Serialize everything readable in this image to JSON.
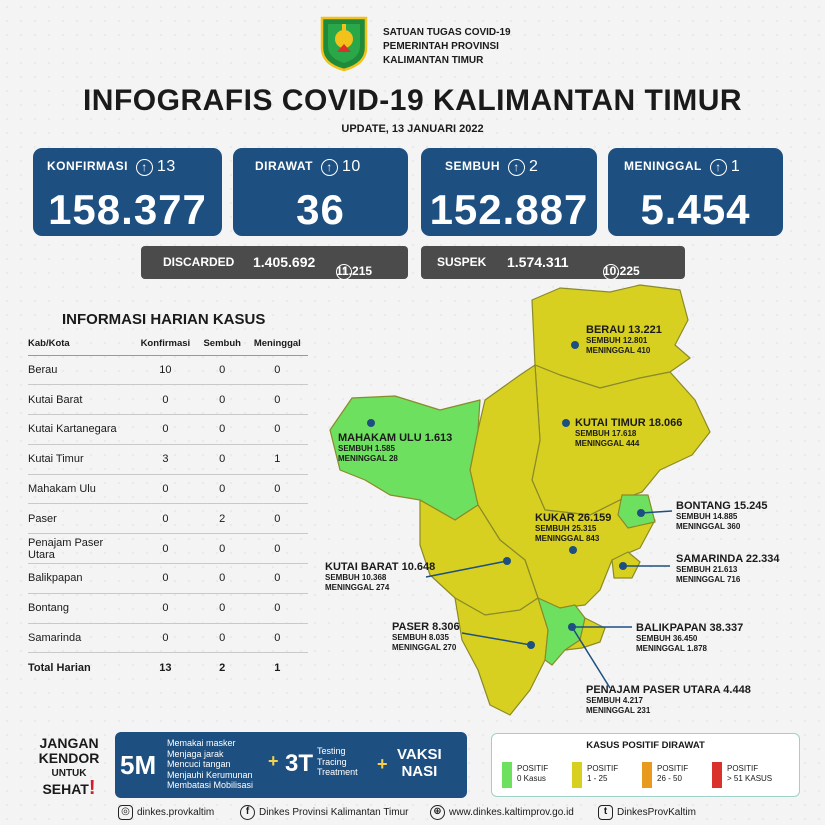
{
  "header": {
    "org_line1": "SATUAN TUGAS COVID-19",
    "org_line2": "PEMERINTAH PROVINSI",
    "org_line3": "KALIMANTAN TIMUR",
    "title": "INFOGRAFIS COVID-19 KALIMANTAN TIMUR",
    "update": "UPDATE, 13 JANUARI 2022"
  },
  "stats": {
    "konfirmasi": {
      "label": "KONFIRMASI",
      "delta": "13",
      "value": "158.377"
    },
    "dirawat": {
      "label": "DIRAWAT",
      "delta": "10",
      "value": "36"
    },
    "sembuh": {
      "label": "SEMBUH",
      "delta": "2",
      "value": "152.887"
    },
    "meninggal": {
      "label": "MENINGGAL",
      "delta": "1",
      "value": "5.454"
    }
  },
  "discarded": {
    "label": "DISCARDED",
    "value": "1.405.692",
    "delta": "11.215"
  },
  "suspek": {
    "label": "SUSPEK",
    "value": "1.574.311",
    "delta": "10.225"
  },
  "table": {
    "title": "INFORMASI HARIAN KASUS",
    "headers": [
      "Kab/Kota",
      "Konfirmasi",
      "Sembuh",
      "Meninggal"
    ],
    "rows": [
      [
        "Berau",
        "10",
        "0",
        "0"
      ],
      [
        "Kutai Barat",
        "0",
        "0",
        "0"
      ],
      [
        "Kutai Kartanegara",
        "0",
        "0",
        "0"
      ],
      [
        "Kutai Timur",
        "3",
        "0",
        "1"
      ],
      [
        "Mahakam Ulu",
        "0",
        "0",
        "0"
      ],
      [
        "Paser",
        "0",
        "2",
        "0"
      ],
      [
        "Penajam Paser Utara",
        "0",
        "0",
        "0"
      ],
      [
        "Balikpapan",
        "0",
        "0",
        "0"
      ],
      [
        "Bontang",
        "0",
        "0",
        "0"
      ],
      [
        "Samarinda",
        "0",
        "0",
        "0"
      ]
    ],
    "total": [
      "Total Harian",
      "13",
      "2",
      "1"
    ]
  },
  "map": {
    "colors": {
      "green": "#6ee05f",
      "yellow": "#d8d020",
      "border": "#8a8a2a"
    },
    "regions": {
      "berau": {
        "name": "BERAU  13.221",
        "sembuh": "SEMBUH 12.801",
        "meninggal": "MENINGGAL 410"
      },
      "kutai_timur": {
        "name": "KUTAI TIMUR 18.066",
        "sembuh": "SEMBUH 17.618",
        "meninggal": "MENINGGAL 444"
      },
      "mahakam_ulu": {
        "name": "MAHAKAM ULU  1.613",
        "sembuh": "SEMBUH 1.585",
        "meninggal": "MENINGGAL 28"
      },
      "bontang": {
        "name": "BONTANG  15.245",
        "sembuh": "SEMBUH 14.885",
        "meninggal": "MENINGGAL 360"
      },
      "kukar": {
        "name": "KUKAR 26.159",
        "sembuh": "SEMBUH 25.315",
        "meninggal": "MENINGGAL 843"
      },
      "samarinda": {
        "name": "SAMARINDA  22.334",
        "sembuh": "SEMBUH 21.613",
        "meninggal": "MENINGGAL 716"
      },
      "kutai_barat": {
        "name": "KUTAI BARAT 10.648",
        "sembuh": "SEMBUH 10.368",
        "meninggal": "MENINGGAL 274"
      },
      "paser": {
        "name": "PASER  8.306",
        "sembuh": "SEMBUH 8.035",
        "meninggal": "MENINGGAL 270"
      },
      "balikpapan": {
        "name": "BALIKPAPAN  38.337",
        "sembuh": "SEMBUH 36.450",
        "meninggal": "MENINGGAL 1.878"
      },
      "ppu": {
        "name": "PENAJAM PASER UTARA 4.448",
        "sembuh": "SEMBUH 4.217",
        "meninggal": "MENINGGAL 231"
      }
    }
  },
  "legend": {
    "title": "KASUS POSITIF DIRAWAT",
    "items": [
      {
        "l1": "POSITIF",
        "l2": "0 Kasus",
        "color": "#6ee05f"
      },
      {
        "l1": "POSITIF",
        "l2": "1 - 25",
        "color": "#d8d020"
      },
      {
        "l1": "POSITIF",
        "l2": "26 - 50",
        "color": "#e89a1e"
      },
      {
        "l1": "POSITIF",
        "l2": "> 51 KASUS",
        "color": "#d8322a"
      }
    ]
  },
  "banner": {
    "jangan": "JANGAN",
    "kendor": "KENDOR",
    "untuk": "UNTUK",
    "sehat": "SEHAT",
    "exclaim": "!",
    "m5": "5M",
    "m5_items": [
      "Memakai masker",
      "Menjaga jarak",
      "Mencuci tangan",
      "Menjauhi Kerumunan",
      "Membatasi Mobilisasi"
    ],
    "t3": "3T",
    "t3_items": [
      "Testing",
      "Tracing",
      "Treatment"
    ],
    "plus": "+",
    "vaksi": "VAKSI",
    "nasi": "NASI"
  },
  "footer": {
    "instagram": "dinkes.provkaltim",
    "facebook": "Dinkes Provinsi Kalimantan Timur",
    "website": "www.dinkes.kaltimprov.go.id",
    "twitter": "DinkesProvKaltim",
    "icons": [
      "instagram-icon",
      "facebook-icon",
      "globe-icon",
      "twitter-icon"
    ]
  }
}
